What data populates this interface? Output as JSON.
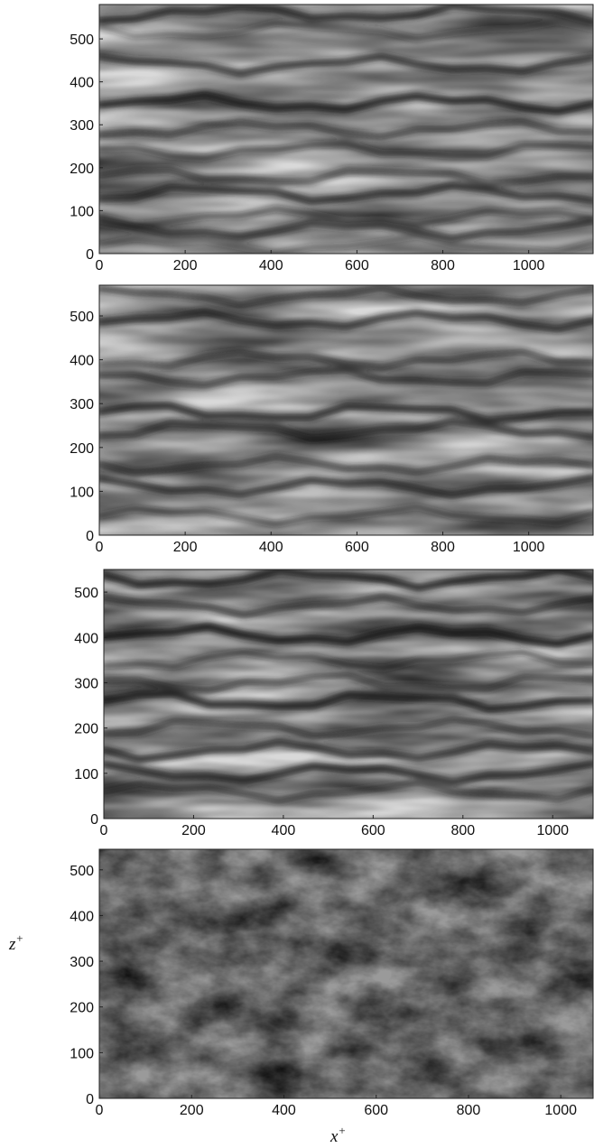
{
  "chart_data": [
    {
      "type": "heatmap",
      "colormap": "grayscale",
      "xlim": [
        0,
        1150
      ],
      "ylim": [
        0,
        580
      ],
      "xticks": [
        "0",
        "200",
        "400",
        "600",
        "800",
        "1000"
      ],
      "yticks": [
        "0",
        "100",
        "200",
        "300",
        "400",
        "500"
      ],
      "streaks": [
        {
          "z": 20,
          "strength": 0.35
        },
        {
          "z": 55,
          "strength": 0.7
        },
        {
          "z": 85,
          "strength": 0.5
        },
        {
          "z": 140,
          "strength": 0.75
        },
        {
          "z": 180,
          "strength": 0.6
        },
        {
          "z": 240,
          "strength": 0.55
        },
        {
          "z": 290,
          "strength": 0.6
        },
        {
          "z": 350,
          "strength": 0.85
        },
        {
          "z": 440,
          "strength": 0.75
        },
        {
          "z": 520,
          "strength": 0.4
        },
        {
          "z": 560,
          "strength": 0.8
        }
      ]
    },
    {
      "type": "heatmap",
      "colormap": "grayscale",
      "xlim": [
        0,
        1150
      ],
      "ylim": [
        0,
        570
      ],
      "xticks": [
        "0",
        "200",
        "400",
        "600",
        "800",
        "1000"
      ],
      "yticks": [
        "0",
        "100",
        "200",
        "300",
        "400",
        "500"
      ],
      "streaks": [
        {
          "z": 45,
          "strength": 0.5
        },
        {
          "z": 110,
          "strength": 0.75
        },
        {
          "z": 160,
          "strength": 0.6
        },
        {
          "z": 240,
          "strength": 0.7
        },
        {
          "z": 280,
          "strength": 0.8
        },
        {
          "z": 360,
          "strength": 0.65
        },
        {
          "z": 400,
          "strength": 0.6
        },
        {
          "z": 490,
          "strength": 0.75
        },
        {
          "z": 545,
          "strength": 0.6
        }
      ]
    },
    {
      "type": "heatmap",
      "colormap": "grayscale",
      "xlim": [
        0,
        1090
      ],
      "ylim": [
        0,
        550
      ],
      "xticks": [
        "0",
        "200",
        "400",
        "600",
        "800",
        "1000"
      ],
      "yticks": [
        "0",
        "100",
        "200",
        "300",
        "400",
        "500"
      ],
      "streaks": [
        {
          "z": 60,
          "strength": 0.6
        },
        {
          "z": 100,
          "strength": 0.8
        },
        {
          "z": 150,
          "strength": 0.75
        },
        {
          "z": 200,
          "strength": 0.6
        },
        {
          "z": 260,
          "strength": 0.85
        },
        {
          "z": 300,
          "strength": 0.6
        },
        {
          "z": 350,
          "strength": 0.55
        },
        {
          "z": 405,
          "strength": 0.9
        },
        {
          "z": 470,
          "strength": 0.65
        },
        {
          "z": 530,
          "strength": 0.85
        }
      ]
    },
    {
      "type": "heatmap",
      "colormap": "grayscale",
      "xlim": [
        0,
        1070
      ],
      "ylim": [
        0,
        545
      ],
      "xticks": [
        "0",
        "200",
        "400",
        "600",
        "800",
        "1000"
      ],
      "yticks": [
        "0",
        "100",
        "200",
        "300",
        "400",
        "500"
      ],
      "xlabel": "x",
      "xlabel_sup": "+",
      "ylabel": "z",
      "ylabel_sup": "+",
      "texture": "fine-scale turbulent"
    }
  ]
}
